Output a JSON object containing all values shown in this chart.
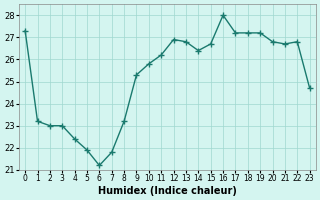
{
  "x": [
    0,
    1,
    2,
    3,
    4,
    5,
    6,
    7,
    8,
    9,
    10,
    11,
    12,
    13,
    14,
    15,
    16,
    17,
    18,
    19,
    20,
    21,
    22,
    23
  ],
  "y": [
    27.3,
    23.2,
    23.0,
    23.0,
    22.4,
    21.9,
    21.2,
    21.8,
    23.2,
    25.3,
    25.8,
    26.2,
    26.9,
    26.8,
    26.4,
    26.7,
    28.0,
    27.2,
    27.2,
    27.2,
    26.8,
    26.7,
    26.8,
    24.7
  ],
  "xlabel": "Humidex (Indice chaleur)",
  "ylabel": "",
  "title": "",
  "line_color": "#1a7a6e",
  "marker_color": "#1a7a6e",
  "bg_color": "#d4f5f0",
  "grid_color": "#a0d8d0",
  "ylim": [
    21,
    28.5
  ],
  "yticks": [
    21,
    22,
    23,
    24,
    25,
    26,
    27,
    28
  ],
  "xtick_labels": [
    "0",
    "1",
    "2",
    "3",
    "4",
    "5",
    "6",
    "7",
    "8",
    "9",
    "10",
    "11",
    "12",
    "13",
    "14",
    "15",
    "16",
    "17",
    "18",
    "19",
    "20",
    "21",
    "22",
    "23"
  ]
}
